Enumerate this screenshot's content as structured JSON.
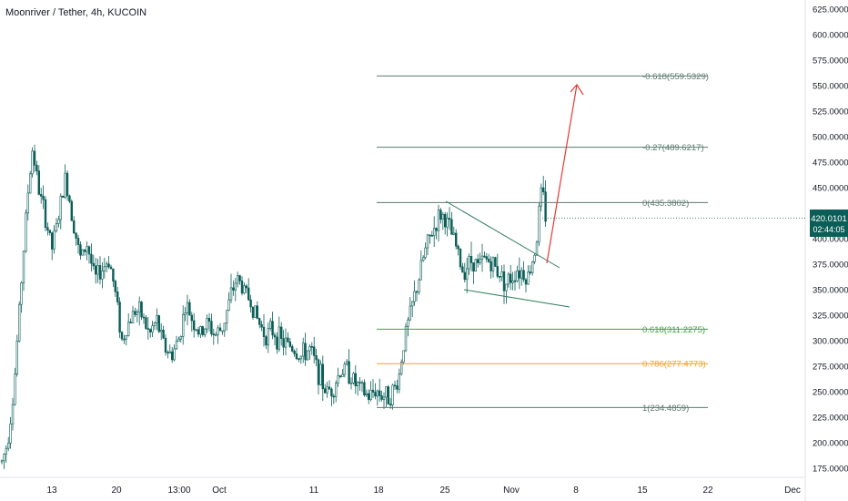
{
  "header": {
    "title": "Moonriver / Tether, 4h, KUCOIN"
  },
  "price_badge": {
    "price": "420.0101",
    "countdown": "02:44:05",
    "value": 420.0101,
    "color": "#0b5e57"
  },
  "colors": {
    "candle": "#0b5e57",
    "fib_neutral": "#5c7a70",
    "fib_green": "#43a047",
    "fib_orange": "#f4a21b",
    "arrow": "#e53935",
    "wedge": "#2e7d5b"
  },
  "chart_data": {
    "type": "candlestick",
    "title": "Moonriver / Tether, 4h, KUCOIN",
    "ylim": [
      163,
      632
    ],
    "y_ticks": [
      "625.0000",
      "600.0000",
      "575.0000",
      "550.0000",
      "525.0000",
      "500.0000",
      "475.0000",
      "450.0000",
      "425.0000",
      "400.0000",
      "375.0000",
      "350.0000",
      "325.0000",
      "300.0000",
      "275.0000",
      "250.0000",
      "225.0000",
      "200.0000",
      "175.0000"
    ],
    "x_ticks": [
      "13",
      "20",
      "13:00",
      "Oct",
      "11",
      "18",
      "25",
      "Nov",
      "8",
      "15",
      "22",
      "Dec"
    ],
    "price_path": [
      [
        0,
        175
      ],
      [
        8,
        200
      ],
      [
        15,
        250
      ],
      [
        22,
        340
      ],
      [
        30,
        440
      ],
      [
        36,
        490
      ],
      [
        42,
        450
      ],
      [
        50,
        420
      ],
      [
        57,
        390
      ],
      [
        64,
        420
      ],
      [
        72,
        460
      ],
      [
        80,
        420
      ],
      [
        88,
        380
      ],
      [
        96,
        395
      ],
      [
        104,
        360
      ],
      [
        112,
        370
      ],
      [
        120,
        380
      ],
      [
        128,
        340
      ],
      [
        134,
        300
      ],
      [
        140,
        315
      ],
      [
        148,
        330
      ],
      [
        156,
        325
      ],
      [
        164,
        305
      ],
      [
        172,
        320
      ],
      [
        180,
        295
      ],
      [
        188,
        285
      ],
      [
        196,
        300
      ],
      [
        204,
        335
      ],
      [
        212,
        320
      ],
      [
        220,
        305
      ],
      [
        228,
        318
      ],
      [
        236,
        305
      ],
      [
        244,
        312
      ],
      [
        252,
        338
      ],
      [
        260,
        362
      ],
      [
        268,
        350
      ],
      [
        276,
        338
      ],
      [
        284,
        318
      ],
      [
        292,
        306
      ],
      [
        300,
        310
      ],
      [
        310,
        298
      ],
      [
        320,
        295
      ],
      [
        330,
        284
      ],
      [
        340,
        292
      ],
      [
        350,
        270
      ],
      [
        358,
        250
      ],
      [
        366,
        254
      ],
      [
        374,
        270
      ],
      [
        382,
        272
      ],
      [
        390,
        258
      ],
      [
        398,
        250
      ],
      [
        406,
        244
      ],
      [
        412,
        252
      ],
      [
        418,
        248
      ],
      [
        425,
        245
      ],
      [
        432,
        250
      ],
      [
        438,
        262
      ],
      [
        444,
        300
      ],
      [
        452,
        330
      ],
      [
        460,
        360
      ],
      [
        466,
        384
      ],
      [
        472,
        400
      ],
      [
        478,
        412
      ],
      [
        484,
        424
      ],
      [
        490,
        418
      ],
      [
        496,
        405
      ],
      [
        502,
        390
      ],
      [
        508,
        368
      ],
      [
        514,
        375
      ],
      [
        520,
        380
      ],
      [
        526,
        372
      ],
      [
        532,
        380
      ],
      [
        538,
        378
      ],
      [
        544,
        372
      ],
      [
        550,
        366
      ],
      [
        556,
        356
      ],
      [
        562,
        362
      ],
      [
        568,
        370
      ],
      [
        574,
        368
      ],
      [
        580,
        362
      ],
      [
        585,
        378
      ],
      [
        590,
        400
      ],
      [
        594,
        446
      ],
      [
        597,
        440
      ],
      [
        600,
        420
      ]
    ],
    "fib_levels": [
      {
        "label": "-0.618(559.5329)",
        "value": 559.5329,
        "color": "#5c7a70"
      },
      {
        "label": "-0.27(489.6217)",
        "value": 489.6217,
        "color": "#5c7a70"
      },
      {
        "label": "0(435.3802)",
        "value": 435.3802,
        "color": "#5c7a70"
      },
      {
        "label": "0.618(311.2275)",
        "value": 311.2275,
        "color": "#43a047"
      },
      {
        "label": "0.786(277.4773)",
        "value": 277.4773,
        "color": "#f4a21b"
      },
      {
        "label": "1(234.4859)",
        "value": 234.4859,
        "color": "#5c7a70"
      }
    ]
  }
}
